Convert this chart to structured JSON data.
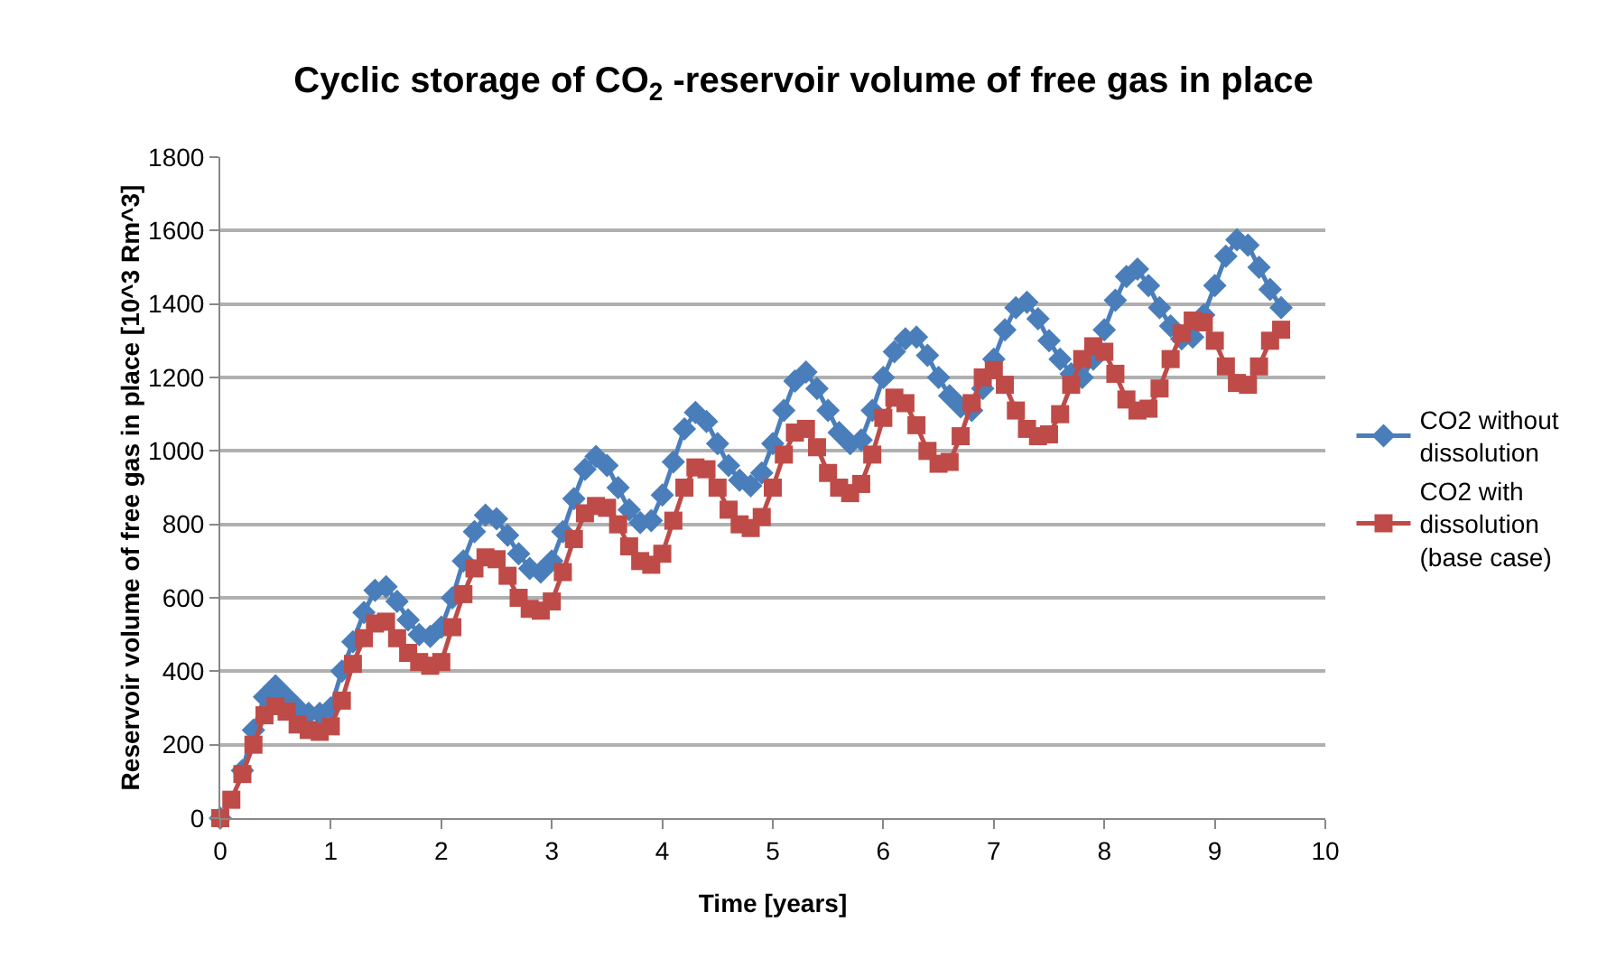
{
  "chart_data": {
    "type": "line",
    "title": "Cyclic storage of CO$_{2}$ -reservoir volume of free gas in place",
    "xlabel": "Time [years]",
    "ylabel": "Reservoir volume of free gas in place [10^3 Rm^3]",
    "x": [
      0,
      0.1,
      0.2,
      0.3,
      0.4,
      0.5,
      0.6,
      0.7,
      0.8,
      0.9,
      1,
      1.1,
      1.2,
      1.3,
      1.4,
      1.5,
      1.6,
      1.7,
      1.8,
      1.9,
      2,
      2.1,
      2.2,
      2.3,
      2.4,
      2.5,
      2.6,
      2.7,
      2.8,
      2.9,
      3,
      3.1,
      3.2,
      3.3,
      3.4,
      3.5,
      3.6,
      3.7,
      3.8,
      3.9,
      4,
      4.1,
      4.2,
      4.3,
      4.4,
      4.5,
      4.6,
      4.7,
      4.8,
      4.9,
      5,
      5.1,
      5.2,
      5.3,
      5.4,
      5.5,
      5.6,
      5.7,
      5.8,
      5.9,
      6,
      6.1,
      6.2,
      6.3,
      6.4,
      6.5,
      6.6,
      6.7,
      6.8,
      6.9,
      7,
      7.1,
      7.2,
      7.3,
      7.4,
      7.5,
      7.6,
      7.7,
      7.8,
      7.9,
      8,
      8.1,
      8.2,
      8.3,
      8.4,
      8.5,
      8.6,
      8.7,
      8.8,
      8.9,
      9,
      9.1,
      9.2,
      9.3,
      9.4,
      9.5,
      9.6
    ],
    "series": [
      {
        "name": "CO2 without dissolution",
        "color": "#4a7ebb",
        "marker": "diamond",
        "values": [
          0,
          null,
          130,
          240,
          330,
          360,
          330,
          300,
          285,
          285,
          300,
          400,
          480,
          560,
          620,
          630,
          590,
          540,
          500,
          495,
          520,
          600,
          700,
          780,
          825,
          815,
          770,
          720,
          680,
          670,
          700,
          780,
          870,
          950,
          985,
          960,
          900,
          840,
          805,
          810,
          880,
          970,
          1060,
          1105,
          1080,
          1020,
          960,
          920,
          905,
          940,
          1020,
          1110,
          1190,
          1215,
          1170,
          1110,
          1050,
          1020,
          1030,
          1110,
          1200,
          1270,
          1305,
          1310,
          1260,
          1200,
          1150,
          1120,
          1110,
          1170,
          1250,
          1330,
          1390,
          1405,
          1360,
          1300,
          1250,
          1210,
          1200,
          1250,
          1330,
          1410,
          1475,
          1495,
          1450,
          1390,
          1340,
          1305,
          1310,
          1370,
          1450,
          1530,
          1575,
          1560,
          1500,
          1440,
          1390
        ]
      },
      {
        "name": "CO2 with dissolution (base case)",
        "color": "#be4b48",
        "marker": "square",
        "values": [
          0,
          50,
          120,
          200,
          280,
          305,
          290,
          255,
          240,
          235,
          250,
          320,
          420,
          490,
          530,
          535,
          490,
          450,
          425,
          415,
          425,
          520,
          610,
          680,
          710,
          705,
          660,
          600,
          570,
          565,
          590,
          670,
          760,
          830,
          850,
          845,
          800,
          740,
          700,
          690,
          720,
          810,
          900,
          955,
          950,
          900,
          840,
          800,
          790,
          820,
          900,
          990,
          1050,
          1060,
          1010,
          940,
          900,
          885,
          910,
          990,
          1090,
          1145,
          1130,
          1070,
          1000,
          965,
          970,
          1040,
          1130,
          1200,
          1220,
          1180,
          1110,
          1060,
          1040,
          1045,
          1100,
          1180,
          1250,
          1285,
          1270,
          1210,
          1140,
          1110,
          1115,
          1170,
          1250,
          1320,
          1355,
          1350,
          1300,
          1230,
          1185,
          1180,
          1230,
          1300,
          1330
        ]
      }
    ],
    "xlim": [
      0,
      10
    ],
    "xticks": [
      0,
      1,
      2,
      3,
      4,
      5,
      6,
      7,
      8,
      9,
      10
    ],
    "ylim": [
      0,
      1800
    ],
    "yticks": [
      0,
      200,
      400,
      600,
      800,
      1000,
      1200,
      1400,
      1600,
      1800
    ],
    "grid": "y",
    "legend": "right",
    "line_style": "solid"
  }
}
